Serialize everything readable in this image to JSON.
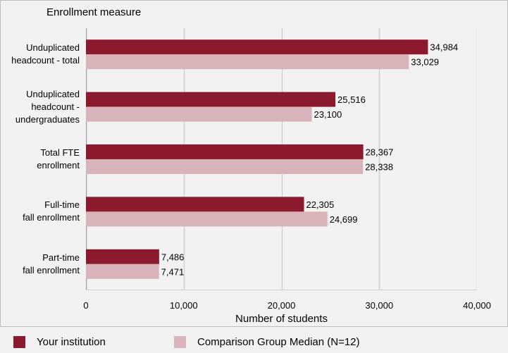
{
  "chart_data": {
    "type": "bar",
    "orientation": "horizontal",
    "title": "Enrollment measure",
    "xlabel": "Number of students",
    "ylabel": "",
    "xlim": [
      0,
      40000
    ],
    "xticks": [
      "0",
      "10,000",
      "20,000",
      "30,000",
      "40,000"
    ],
    "grid": true,
    "legend_position": "bottom",
    "categories": [
      [
        "Unduplicated",
        "headcount - total"
      ],
      [
        "Unduplicated",
        "headcount -",
        "undergraduates"
      ],
      [
        "Total FTE",
        "enrollment"
      ],
      [
        "Full-time",
        "fall enrollment"
      ],
      [
        "Part-time",
        "fall enrollment"
      ]
    ],
    "series": [
      {
        "name": "Your institution",
        "color": "#8b1a2f",
        "values": [
          34984,
          25516,
          28367,
          22305,
          7486
        ],
        "labels": [
          "34,984",
          "25,516",
          "28,367",
          "22,305",
          "7,486"
        ]
      },
      {
        "name": "Comparison Group Median (N=12)",
        "color": "#d9b3ba",
        "values": [
          33029,
          23100,
          28338,
          24699,
          7471
        ],
        "labels": [
          "33,029",
          "23,100",
          "28,338",
          "24,699",
          "7,471"
        ]
      }
    ]
  }
}
